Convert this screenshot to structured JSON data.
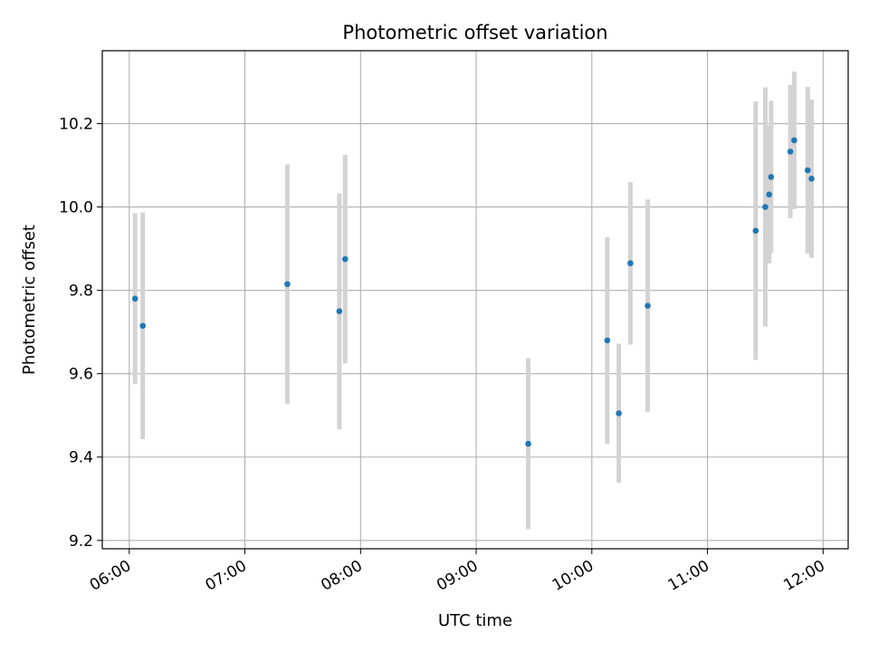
{
  "chart_data": {
    "type": "scatter",
    "title": "Photometric offset variation",
    "xlabel": "UTC time",
    "ylabel": "Photometric offset",
    "xlim": [
      "05:46",
      "12:13"
    ],
    "ylim": [
      9.18,
      10.375
    ],
    "xticks": [
      "06:00",
      "07:00",
      "08:00",
      "09:00",
      "10:00",
      "11:00",
      "12:00"
    ],
    "yticks": [
      9.2,
      9.4,
      9.6,
      9.8,
      10.0,
      10.2
    ],
    "ytick_labels": [
      "9.2",
      "9.4",
      "9.6",
      "9.8",
      "10.0",
      "10.2"
    ],
    "grid": true,
    "colors": {
      "point": "#1f77b4",
      "errorbar": "#d3d3d3",
      "grid": "#b0b0b0"
    },
    "points": [
      {
        "x": "06:03",
        "y": 9.78,
        "yerr": 0.205
      },
      {
        "x": "06:07",
        "y": 9.715,
        "yerr": 0.272
      },
      {
        "x": "07:22",
        "y": 9.815,
        "yerr": 0.287
      },
      {
        "x": "07:49",
        "y": 9.75,
        "yerr": 0.283
      },
      {
        "x": "07:52",
        "y": 9.875,
        "yerr": 0.25
      },
      {
        "x": "09:27",
        "y": 9.432,
        "yerr": 0.205
      },
      {
        "x": "10:08",
        "y": 9.68,
        "yerr": 0.248
      },
      {
        "x": "10:14",
        "y": 9.505,
        "yerr": 0.167
      },
      {
        "x": "10:20",
        "y": 9.865,
        "yerr": 0.195
      },
      {
        "x": "10:29",
        "y": 9.763,
        "yerr": 0.255
      },
      {
        "x": "11:25",
        "y": 9.943,
        "yerr": 0.31
      },
      {
        "x": "11:30",
        "y": 10.0,
        "yerr": 0.287
      },
      {
        "x": "11:32",
        "y": 10.03,
        "yerr": 0.165
      },
      {
        "x": "11:33",
        "y": 10.072,
        "yerr": 0.183
      },
      {
        "x": "11:43",
        "y": 10.133,
        "yerr": 0.16
      },
      {
        "x": "11:45",
        "y": 10.16,
        "yerr": 0.165
      },
      {
        "x": "11:52",
        "y": 10.088,
        "yerr": 0.2
      },
      {
        "x": "11:54",
        "y": 10.068,
        "yerr": 0.19
      }
    ]
  }
}
